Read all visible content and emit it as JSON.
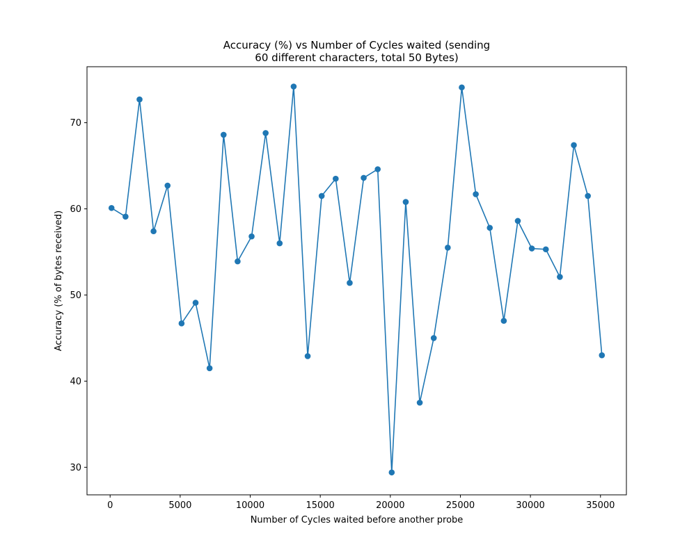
{
  "chart_data": {
    "type": "line",
    "title_lines": [
      "Accuracy (%) vs Number of Cycles waited (sending",
      "60 different characters, total 50 Bytes)"
    ],
    "xlabel": "Number of Cycles waited before another probe",
    "ylabel": "Accuracy (% of bytes received)",
    "xlim": [
      -1650,
      36850
    ],
    "ylim": [
      26.8,
      76.5
    ],
    "x_ticks": [
      0,
      5000,
      10000,
      15000,
      20000,
      25000,
      30000,
      35000
    ],
    "y_ticks": [
      30,
      40,
      50,
      60,
      70
    ],
    "grid": false,
    "marker": "circle",
    "color": "#1f77b4",
    "series": [
      {
        "x": [
          100,
          1100,
          2100,
          3100,
          4100,
          5100,
          6100,
          7100,
          8100,
          9100,
          10100,
          11100,
          12100,
          13100,
          14100,
          15100,
          16100,
          17100,
          18100,
          19100,
          20100,
          21100,
          22100,
          23100,
          24100,
          25100,
          26100,
          27100,
          28100,
          29100,
          30100,
          31100,
          32100,
          33100,
          34100,
          35100
        ],
        "values": [
          60.1,
          59.1,
          72.7,
          57.4,
          62.7,
          46.7,
          49.1,
          41.5,
          68.6,
          53.9,
          56.8,
          68.8,
          56.0,
          74.2,
          42.9,
          61.5,
          63.5,
          51.4,
          63.6,
          64.6,
          29.4,
          60.8,
          37.5,
          45.0,
          55.5,
          74.1,
          61.7,
          57.8,
          47.0,
          58.6,
          55.4,
          55.3,
          52.1,
          67.4,
          61.5,
          43.0
        ]
      }
    ]
  }
}
